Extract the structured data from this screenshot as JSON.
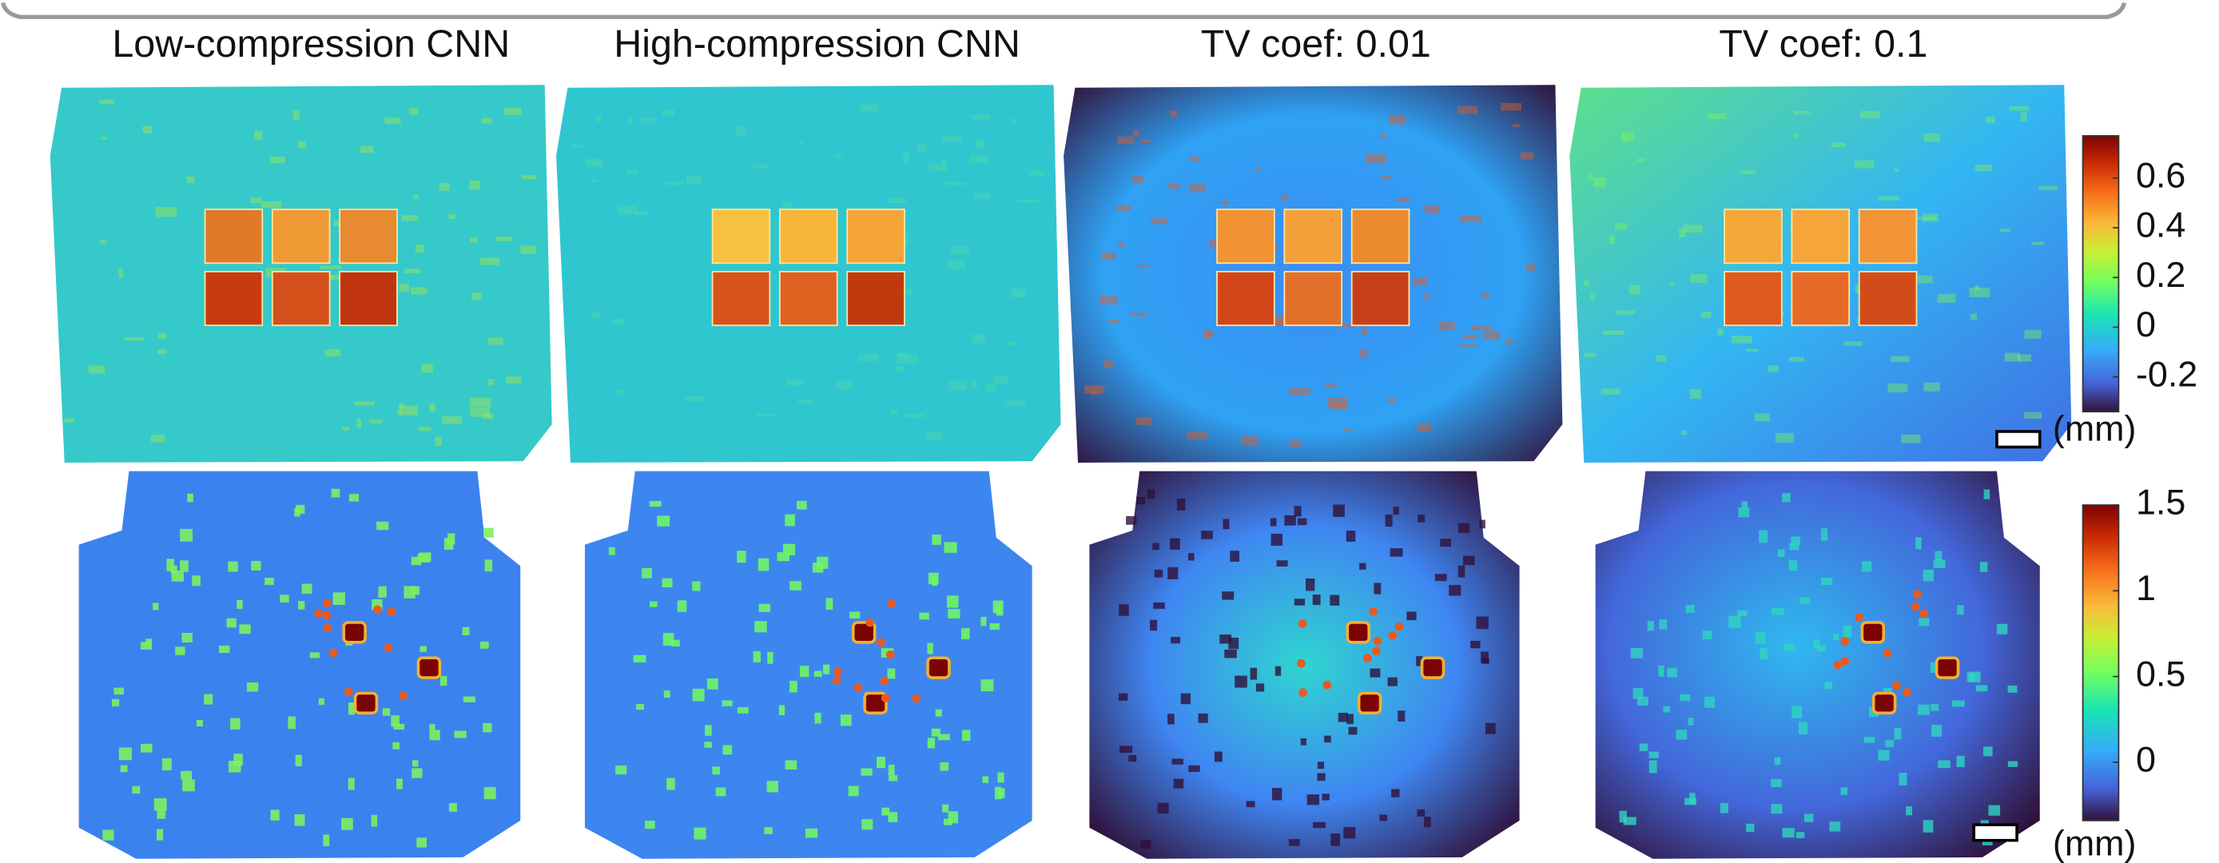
{
  "panel_titles": [
    "Low-compression CNN",
    "High-compression CNN",
    "TV coef: 0.01",
    "TV coef: 0.1"
  ],
  "colorbars": [
    {
      "lim": [
        -0.34,
        0.77
      ],
      "ticks": [
        0.6,
        0.4,
        0.2,
        0,
        -0.2
      ],
      "unit": "(mm)"
    },
    {
      "lim": [
        -0.34,
        1.5
      ],
      "ticks": [
        1.5,
        1,
        0.5,
        0
      ],
      "unit": "(mm)"
    }
  ]
}
